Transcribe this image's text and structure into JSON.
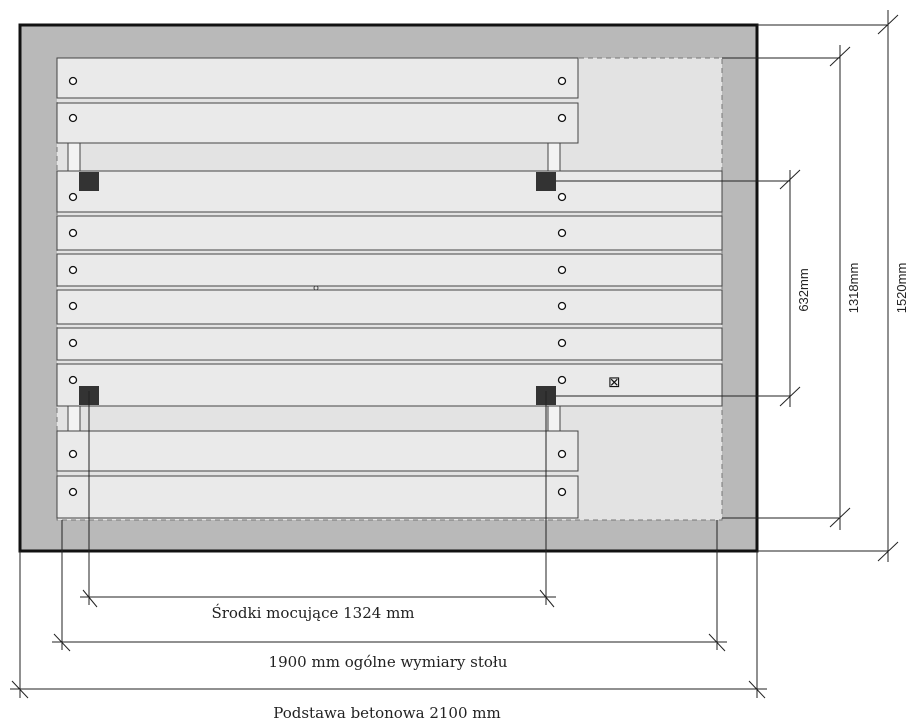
{
  "dimensions": {
    "mounting_centers": "Środki mocujące 1324 mm",
    "overall_table": "1900 mm ogólne wymiary stołu",
    "concrete_base": "Podstawa betonowa 2100 mm",
    "leg_spacing": "632mm",
    "table_depth": "1318mm",
    "base_depth": "1520mm"
  },
  "colors": {
    "base_fill": "#b9b9b9",
    "table_area_fill": "#e3e3e3",
    "plank_fill": "#eaeaea",
    "post_fill": "#333333",
    "outline": "#111111"
  },
  "symbols": {
    "marker": "⊠"
  }
}
